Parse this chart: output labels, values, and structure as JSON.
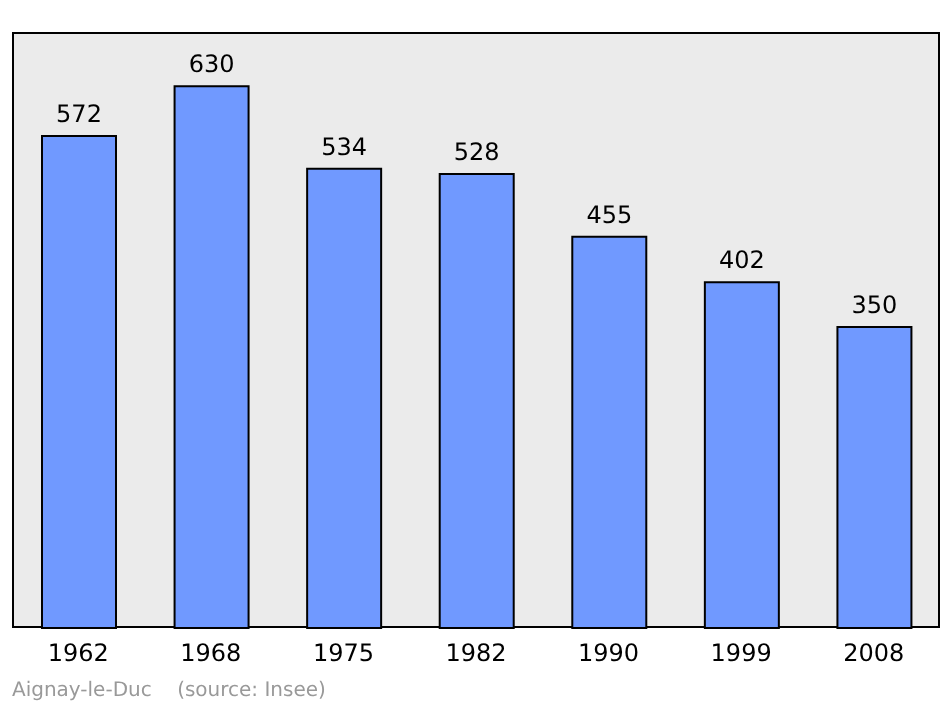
{
  "chart_data": {
    "type": "bar",
    "categories": [
      "1962",
      "1968",
      "1975",
      "1982",
      "1990",
      "1999",
      "2008"
    ],
    "values": [
      572,
      630,
      534,
      528,
      455,
      402,
      350
    ],
    "color": "#7099ff",
    "data_labels": true,
    "annotations": [
      "Aignay-le-Duc    (source: Insee)"
    ]
  }
}
